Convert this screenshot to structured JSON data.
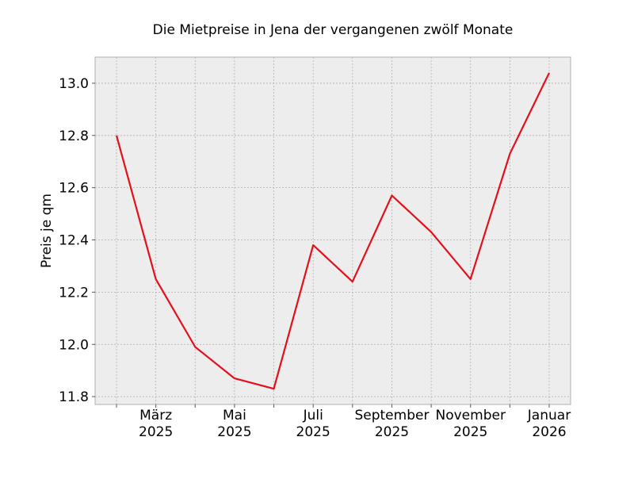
{
  "chart_data": {
    "type": "line",
    "title": "Die Mietpreise in Jena der vergangenen zwölf Monate",
    "xlabel": "",
    "ylabel": "Preis je qm",
    "x": [
      "2025-02-01",
      "2025-03-01",
      "2025-04-01",
      "2025-05-01",
      "2025-06-01",
      "2025-07-01",
      "2025-08-01",
      "2025-09-01",
      "2025-10-01",
      "2025-11-01",
      "2025-12-01",
      "2026-01-01"
    ],
    "series": [
      {
        "color": "#e3101b",
        "values": [
          12.8,
          12.25,
          11.99,
          11.87,
          11.83,
          12.38,
          12.24,
          12.57,
          12.43,
          12.25,
          12.73,
          13.04
        ]
      }
    ],
    "ylim": [
      11.77,
      13.1
    ],
    "y_ticks": [
      "11.8",
      "12.0",
      "12.2",
      "12.4",
      "12.6",
      "12.8",
      "13.0"
    ],
    "x_tick_labels": [
      {
        "month": "März",
        "year": "2025"
      },
      {
        "month": "Mai",
        "year": "2025"
      },
      {
        "month": "Juli",
        "year": "2025"
      },
      {
        "month": "September",
        "year": "2025"
      },
      {
        "month": "November",
        "year": "2025"
      },
      {
        "month": "Januar",
        "year": "2026"
      }
    ],
    "grid": true,
    "colors": {
      "background": "#ededed",
      "grid": "#b0b0b0",
      "line": "#e3101b"
    }
  }
}
